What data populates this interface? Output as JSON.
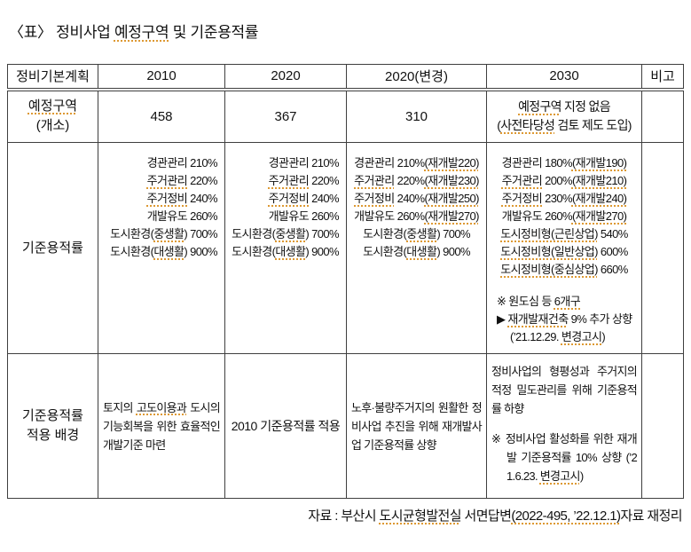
{
  "colors": {
    "squiggle": "#dd9933",
    "border": "#3f3f3f",
    "text": "#111111"
  },
  "title_lines": [
    [
      {
        "t": "〈표〉 정비사업 "
      },
      {
        "t": "예정구역",
        "u": true
      },
      {
        "t": " 및 기준용적률"
      }
    ]
  ],
  "table": {
    "headers": [
      "정비기본계획",
      "2010",
      "2020",
      "2020(변경)",
      "2030",
      "비고"
    ],
    "row_zones": {
      "label_lines": [
        [
          {
            "t": "예정구역",
            "u": true
          }
        ],
        [
          {
            "t": "(개소)"
          }
        ]
      ],
      "v2010": "458",
      "v2020": "367",
      "v2020rev": "310",
      "v2030_lines": [
        [
          {
            "t": "예정구역",
            "u": true
          },
          {
            "t": " 지정 없음"
          }
        ],
        [
          {
            "t": "("
          },
          {
            "t": "사전타당성",
            "u": true
          },
          {
            "t": " 검토 제도 도입)"
          }
        ]
      ],
      "remark": ""
    },
    "row_far": {
      "label": "기준용적률",
      "v2010_lines": [
        [
          {
            "t": "경관관리 210%"
          }
        ],
        [
          {
            "t": "주거관리",
            "u": true
          },
          {
            "t": " 220%"
          }
        ],
        [
          {
            "t": "주거정비",
            "u": true
          },
          {
            "t": " 240%"
          }
        ],
        [
          {
            "t": "개발유도 260%"
          }
        ],
        [
          {
            "t": "도시환경("
          },
          {
            "t": "중생활",
            "u": true
          },
          {
            "t": ") 700%"
          }
        ],
        [
          {
            "t": "도시환경("
          },
          {
            "t": "대생활",
            "u": true
          },
          {
            "t": ") 900%"
          }
        ]
      ],
      "v2020_lines": [
        [
          {
            "t": "경관관리 210%"
          }
        ],
        [
          {
            "t": "주거관리",
            "u": true
          },
          {
            "t": " 220%"
          }
        ],
        [
          {
            "t": "주거정비",
            "u": true
          },
          {
            "t": " 240%"
          }
        ],
        [
          {
            "t": "개발유도 260%"
          }
        ],
        [
          {
            "t": "도시환경("
          },
          {
            "t": "중생활",
            "u": true
          },
          {
            "t": ") 700%"
          }
        ],
        [
          {
            "t": "도시환경("
          },
          {
            "t": "대생활",
            "u": true
          },
          {
            "t": ") 900%"
          }
        ]
      ],
      "v2020rev_lines": [
        [
          {
            "t": "경관관리 210%"
          },
          {
            "t": "(재개발220)",
            "u": true
          }
        ],
        [
          {
            "t": "주거관리",
            "u": true
          },
          {
            "t": " 220%"
          },
          {
            "t": "(재개발230)",
            "u": true
          }
        ],
        [
          {
            "t": "주거정비",
            "u": true
          },
          {
            "t": " 240%"
          },
          {
            "t": "(재개발250)",
            "u": true
          }
        ],
        [
          {
            "t": "개발유도 260%"
          },
          {
            "t": "(재개발270)",
            "u": true
          }
        ],
        [
          {
            "t": "도시환경("
          },
          {
            "t": "중생활",
            "u": true
          },
          {
            "t": ") 700%"
          }
        ],
        [
          {
            "t": "도시환경("
          },
          {
            "t": "대생활",
            "u": true
          },
          {
            "t": ") 900%"
          }
        ]
      ],
      "v2030_lines": [
        [
          {
            "t": "경관관리 180%"
          },
          {
            "t": "(재개발190)",
            "u": true
          }
        ],
        [
          {
            "t": "주거관리",
            "u": true
          },
          {
            "t": " 200%"
          },
          {
            "t": "(재개발210)",
            "u": true
          }
        ],
        [
          {
            "t": "주거정비",
            "u": true
          },
          {
            "t": " 230%"
          },
          {
            "t": "(재개발240)",
            "u": true
          }
        ],
        [
          {
            "t": "개발유도 260%"
          },
          {
            "t": "(재개발270)",
            "u": true
          }
        ],
        [
          {
            "t": "도시정비형(근린상업)",
            "u": true
          },
          {
            "t": " 540%"
          }
        ],
        [
          {
            "t": "도시정비형(일반상업)",
            "u": true
          },
          {
            "t": " 600%"
          }
        ],
        [
          {
            "t": "도시정비형(중심상업)",
            "u": true
          },
          {
            "t": " 660%"
          }
        ]
      ],
      "v2030_note_lines": [
        [
          {
            "t": "※ 원도심 등 "
          },
          {
            "t": "6개구",
            "u": true
          }
        ],
        [
          {
            "t": "▶ "
          },
          {
            "t": "재개발재건축",
            "u": true
          },
          {
            "t": " 9% 추가 상향"
          }
        ],
        [
          {
            "t": "(’21.12.29. "
          },
          {
            "t": "변경고시",
            "u": true
          },
          {
            "t": ")"
          }
        ]
      ],
      "remark": ""
    },
    "row_background": {
      "label_lines": [
        [
          {
            "t": "기준용적률"
          }
        ],
        [
          {
            "t": "적용 배경"
          }
        ]
      ],
      "v2010_para": [
        [
          {
            "t": "토지의 "
          },
          {
            "t": "고도이용과",
            "u": true
          },
          {
            "t": " 도시의 기능회복을 위한 효율적인 개발기준 마련"
          }
        ]
      ],
      "v2020_text": "2010 기준용적률 적용",
      "v2020rev_para": [
        [
          {
            "t": "노후·불량주거지의 원활한 정비사업 추진을 위해 재개발사업 기준용적률 상향"
          }
        ]
      ],
      "v2030_para": [
        [
          {
            "t": "정비사업의 형평성과 주거지의 적정 밀도관리를 위해 기준용적률 하향"
          }
        ]
      ],
      "v2030_note_para": [
        [
          {
            "t": "※ 정비사업 활성화를 위한 재개발 기준용적률 10% 상향 (’21.6.23. "
          },
          {
            "t": "변경고시",
            "u": true
          },
          {
            "t": ")"
          }
        ]
      ],
      "remark": ""
    }
  },
  "source_note_lines": [
    [
      {
        "t": "자료 : 부산시 "
      },
      {
        "t": "도시균형발전실",
        "u": true
      },
      {
        "t": " 서면답변"
      },
      {
        "t": "(2022-495, ’22.12.1)",
        "u": true
      },
      {
        "t": "자료 재정리"
      }
    ]
  ]
}
